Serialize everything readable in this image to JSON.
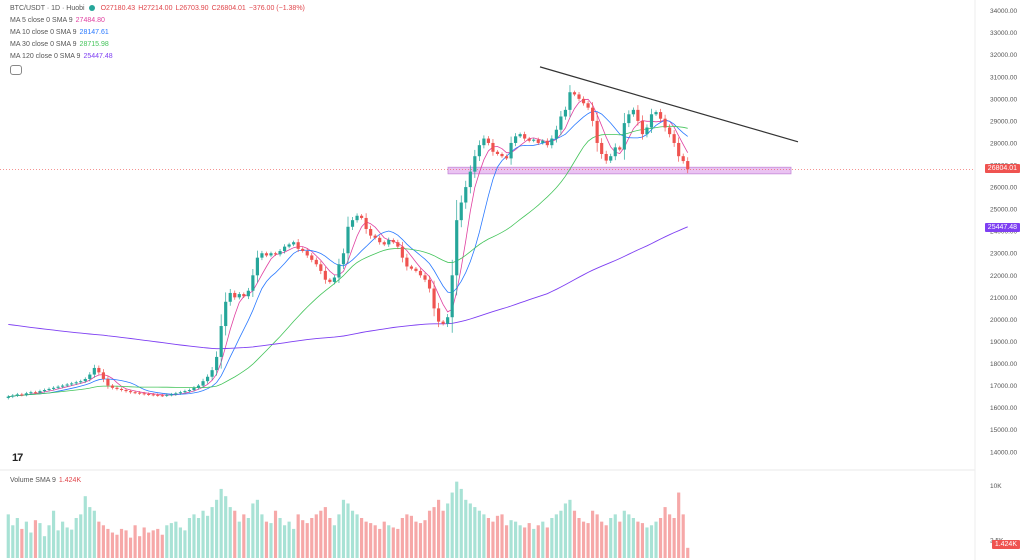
{
  "header": {
    "symbol": "BTC/USDT · 1D · Huobi",
    "open": "O27180.43",
    "high": "H27214.00",
    "low": "L26703.90",
    "close": "C26804.01",
    "change": "−376.00 (−1.38%)"
  },
  "indicators": [
    {
      "label": "MA 5 close 0 SMA 9",
      "value": "27484.80",
      "color": "#e040a0"
    },
    {
      "label": "MA 10 close 0 SMA 9",
      "value": "28147.61",
      "color": "#2979ff"
    },
    {
      "label": "MA 30 close 0 SMA 9",
      "value": "28715.98",
      "color": "#43c45a"
    },
    {
      "label": "MA 120 close 0 SMA 9",
      "value": "25447.48",
      "color": "#7e3ff2"
    }
  ],
  "volume_legend": {
    "label": "Volume SMA 9",
    "value": "1.424K"
  },
  "badges": {
    "last_price": "26804.01",
    "ma120": "25447.48",
    "volume": "1.424K"
  },
  "colors": {
    "up": "#26a69a",
    "down": "#ef5350",
    "vol_up": "#a8e2d5",
    "vol_down": "#f6a8a8",
    "ma5": "#e040a0",
    "ma10": "#2979ff",
    "ma30": "#43c45a",
    "ma120": "#7e3ff2",
    "support_zone": "#e6b8f0",
    "trendline": "#333333"
  },
  "chart_data": {
    "type": "candlestick",
    "symbol": "BTC/USDT",
    "interval": "1D",
    "exchange": "Huobi",
    "yaxis": {
      "ticks": [
        14000,
        15000,
        16000,
        17000,
        18000,
        19000,
        20000,
        21000,
        22000,
        23000,
        24000,
        25000,
        26000,
        27000,
        28000,
        29000,
        30000,
        31000,
        32000,
        33000,
        34000
      ],
      "tick_format": "0.00",
      "range": [
        13400,
        34300
      ]
    },
    "volume_axis": {
      "ticks_labels": [
        "10K",
        "2.5K"
      ],
      "ticks": [
        10000,
        2500
      ],
      "range": [
        0,
        11000
      ]
    },
    "close": [
      16500,
      16550,
      16600,
      16580,
      16650,
      16700,
      16680,
      16750,
      16800,
      16850,
      16900,
      16950,
      17000,
      17050,
      17100,
      17150,
      17200,
      17300,
      17500,
      17800,
      17600,
      17300,
      17000,
      16900,
      16850,
      16800,
      16750,
      16700,
      16680,
      16650,
      16620,
      16600,
      16580,
      16560,
      16550,
      16580,
      16600,
      16650,
      16700,
      16750,
      16800,
      16900,
      17000,
      17200,
      17400,
      17700,
      18300,
      19700,
      20800,
      21200,
      21000,
      21150,
      21050,
      21300,
      22000,
      22800,
      23000,
      22900,
      23000,
      22950,
      23100,
      23300,
      23400,
      23500,
      23200,
      23100,
      22900,
      22700,
      22500,
      22200,
      21800,
      21700,
      21900,
      22500,
      23000,
      24200,
      24500,
      24700,
      24600,
      24100,
      23800,
      23700,
      23500,
      23400,
      23600,
      23500,
      23300,
      22800,
      22400,
      22300,
      22200,
      22000,
      21800,
      21400,
      20500,
      19900,
      19800,
      20100,
      22000,
      24500,
      25300,
      26000,
      26700,
      27400,
      27900,
      28200,
      28000,
      27600,
      27500,
      27400,
      27300,
      28000,
      28300,
      28400,
      28200,
      28100,
      28150,
      28000,
      28100,
      27900,
      28200,
      28600,
      29200,
      29500,
      30300,
      30200,
      30000,
      29800,
      29600,
      29000,
      28000,
      27500,
      27200,
      27400,
      27800,
      27700,
      28900,
      29300,
      29500,
      29000,
      28400,
      28700,
      29300,
      29400,
      29100,
      28700,
      28400,
      28000,
      27400,
      27180,
      26804
    ],
    "last_price": 26804.01,
    "volume": [
      6.0,
      4.5,
      5.5,
      4.0,
      5.0,
      3.5,
      5.2,
      4.8,
      3.0,
      4.5,
      6.5,
      3.8,
      5.0,
      4.2,
      3.9,
      5.5,
      6.0,
      8.5,
      7.0,
      6.5,
      5.0,
      4.5,
      4.0,
      3.5,
      3.2,
      4.0,
      3.8,
      2.8,
      4.5,
      3.0,
      4.2,
      3.5,
      3.8,
      4.0,
      3.2,
      4.5,
      4.8,
      5.0,
      4.2,
      3.8,
      5.5,
      6.0,
      5.5,
      6.5,
      5.8,
      7.0,
      8.0,
      9.5,
      8.5,
      7.0,
      6.5,
      5.0,
      6.0,
      5.5,
      7.5,
      8.0,
      6.0,
      5.0,
      4.8,
      6.5,
      5.5,
      4.5,
      5.0,
      4.0,
      6.0,
      5.2,
      4.8,
      5.5,
      6.0,
      6.5,
      7.0,
      5.5,
      4.5,
      6.0,
      8.0,
      7.5,
      6.5,
      6.0,
      5.5,
      5.0,
      4.8,
      4.5,
      4.0,
      5.0,
      4.5,
      4.2,
      4.0,
      5.5,
      6.0,
      5.8,
      5.0,
      4.8,
      5.2,
      6.5,
      7.0,
      8.0,
      6.5,
      7.5,
      9.0,
      10.5,
      9.5,
      8.0,
      7.5,
      7.0,
      6.5,
      6.0,
      5.5,
      5.0,
      5.8,
      6.0,
      4.5,
      5.2,
      5.0,
      4.5,
      4.2,
      4.8,
      4.0,
      4.5,
      5.0,
      4.2,
      5.5,
      6.0,
      6.5,
      7.5,
      8.0,
      6.5,
      5.5,
      5.0,
      4.8,
      6.5,
      6.0,
      5.0,
      4.5,
      5.5,
      6.0,
      5.0,
      6.5,
      6.0,
      5.5,
      5.0,
      4.8,
      4.2,
      4.5,
      5.0,
      5.5,
      7.0,
      6.0,
      5.5,
      9.0,
      6.0,
      1.4
    ]
  }
}
